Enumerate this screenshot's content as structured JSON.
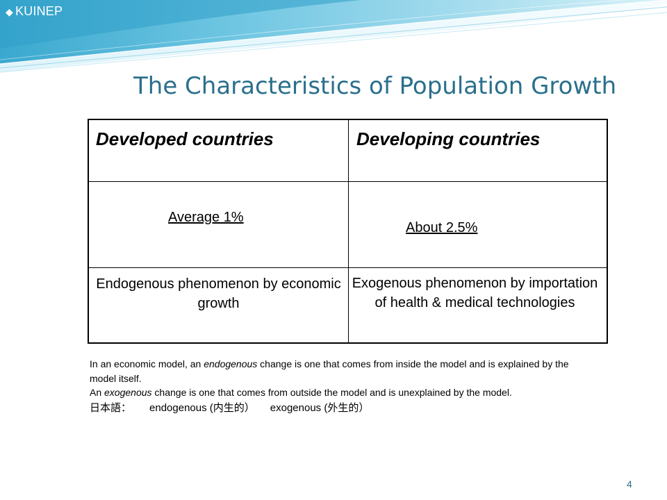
{
  "brand": {
    "symbol": "◆",
    "name": "KUINEP"
  },
  "slide": {
    "title": "The Characteristics of Population Growth",
    "page_number": "4"
  },
  "table": {
    "headers": [
      "Developed countries",
      "Developing countries"
    ],
    "growth_row": [
      "Average 1%",
      "About 2.5%"
    ],
    "cause_row": [
      "Endogenous phenomenon by economic growth",
      "Exogenous phenomenon by importation of health & medical technologies"
    ]
  },
  "notes": {
    "endogenous_pre": "In an economic model, an ",
    "endogenous_term": "endogenous",
    "endogenous_post": " change is one that comes from inside the model and is explained by the model itself.",
    "exogenous_pre": " An ",
    "exogenous_term": "exogenous",
    "exogenous_post": " change is one that comes from outside the model and is unexplained by the model.",
    "japanese_label": "日本語：",
    "endogenous_jp": "endogenous (内生的）",
    "exogenous_jp": "exogenous (外生的）"
  },
  "colors": {
    "title": "#2a6f8c",
    "swoosh_light": "#c6eaf4",
    "swoosh_dark": "#56b7d6"
  }
}
